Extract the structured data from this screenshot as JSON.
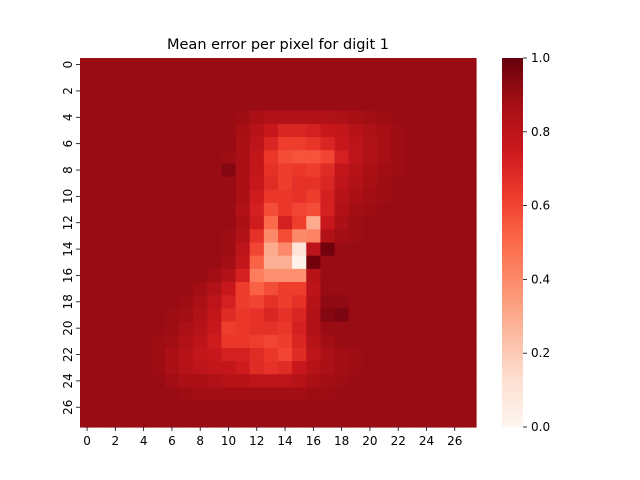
{
  "chart_data": {
    "type": "heatmap",
    "title": "Mean error per pixel for digit 1",
    "xlabel": "",
    "ylabel": "",
    "rows": 28,
    "cols": 28,
    "x_ticks": [
      "0",
      "2",
      "4",
      "6",
      "8",
      "10",
      "12",
      "14",
      "16",
      "18",
      "20",
      "22",
      "24",
      "26"
    ],
    "y_ticks": [
      "0",
      "2",
      "4",
      "6",
      "8",
      "10",
      "12",
      "14",
      "16",
      "18",
      "20",
      "22",
      "24",
      "26"
    ],
    "colorbar": {
      "colormap": "Reds",
      "vmin": 0.0,
      "vmax": 1.0,
      "ticks": [
        "0.0",
        "0.2",
        "0.4",
        "0.6",
        "0.8",
        "1.0"
      ]
    },
    "grid": false,
    "background_value": 0.9,
    "values": [
      [
        0.9,
        0.9,
        0.9,
        0.9,
        0.9,
        0.9,
        0.9,
        0.9,
        0.9,
        0.9,
        0.9,
        0.9,
        0.9,
        0.9,
        0.9,
        0.9,
        0.9,
        0.9,
        0.9,
        0.9,
        0.9,
        0.9,
        0.9,
        0.9,
        0.9,
        0.9,
        0.9,
        0.9
      ],
      [
        0.9,
        0.9,
        0.9,
        0.9,
        0.9,
        0.9,
        0.9,
        0.9,
        0.9,
        0.9,
        0.9,
        0.9,
        0.9,
        0.9,
        0.9,
        0.9,
        0.9,
        0.9,
        0.9,
        0.9,
        0.9,
        0.9,
        0.9,
        0.9,
        0.9,
        0.9,
        0.9,
        0.9
      ],
      [
        0.9,
        0.9,
        0.9,
        0.9,
        0.9,
        0.9,
        0.9,
        0.9,
        0.9,
        0.9,
        0.9,
        0.9,
        0.9,
        0.9,
        0.9,
        0.9,
        0.9,
        0.9,
        0.9,
        0.9,
        0.9,
        0.9,
        0.9,
        0.9,
        0.9,
        0.9,
        0.9,
        0.9
      ],
      [
        0.9,
        0.9,
        0.9,
        0.9,
        0.9,
        0.9,
        0.9,
        0.9,
        0.9,
        0.9,
        0.9,
        0.9,
        0.9,
        0.9,
        0.9,
        0.9,
        0.9,
        0.9,
        0.9,
        0.9,
        0.9,
        0.9,
        0.9,
        0.9,
        0.9,
        0.9,
        0.9,
        0.9
      ],
      [
        0.9,
        0.9,
        0.9,
        0.9,
        0.9,
        0.9,
        0.9,
        0.9,
        0.9,
        0.9,
        0.9,
        0.89,
        0.86,
        0.84,
        0.84,
        0.84,
        0.84,
        0.84,
        0.85,
        0.87,
        0.88,
        0.89,
        0.9,
        0.9,
        0.9,
        0.9,
        0.9,
        0.9
      ],
      [
        0.9,
        0.9,
        0.9,
        0.9,
        0.9,
        0.9,
        0.9,
        0.9,
        0.9,
        0.9,
        0.9,
        0.87,
        0.82,
        0.76,
        0.7,
        0.7,
        0.72,
        0.76,
        0.78,
        0.82,
        0.85,
        0.87,
        0.89,
        0.9,
        0.9,
        0.9,
        0.9,
        0.9
      ],
      [
        0.9,
        0.9,
        0.9,
        0.9,
        0.9,
        0.9,
        0.9,
        0.9,
        0.9,
        0.9,
        0.9,
        0.86,
        0.8,
        0.7,
        0.62,
        0.62,
        0.65,
        0.7,
        0.76,
        0.8,
        0.84,
        0.87,
        0.89,
        0.9,
        0.9,
        0.9,
        0.9,
        0.9
      ],
      [
        0.9,
        0.9,
        0.9,
        0.9,
        0.9,
        0.9,
        0.9,
        0.9,
        0.9,
        0.9,
        0.89,
        0.86,
        0.78,
        0.64,
        0.58,
        0.56,
        0.56,
        0.6,
        0.72,
        0.8,
        0.84,
        0.87,
        0.89,
        0.9,
        0.9,
        0.9,
        0.9,
        0.9
      ],
      [
        0.9,
        0.9,
        0.9,
        0.9,
        0.9,
        0.9,
        0.9,
        0.9,
        0.9,
        0.9,
        0.94,
        0.86,
        0.78,
        0.66,
        0.62,
        0.64,
        0.62,
        0.68,
        0.78,
        0.82,
        0.86,
        0.88,
        0.89,
        0.9,
        0.9,
        0.9,
        0.9,
        0.9
      ],
      [
        0.9,
        0.9,
        0.9,
        0.9,
        0.9,
        0.9,
        0.9,
        0.9,
        0.9,
        0.9,
        0.9,
        0.86,
        0.76,
        0.68,
        0.62,
        0.66,
        0.66,
        0.7,
        0.8,
        0.84,
        0.87,
        0.89,
        0.9,
        0.9,
        0.9,
        0.9,
        0.9,
        0.9
      ],
      [
        0.9,
        0.9,
        0.9,
        0.9,
        0.9,
        0.9,
        0.9,
        0.9,
        0.9,
        0.9,
        0.9,
        0.86,
        0.74,
        0.64,
        0.64,
        0.66,
        0.62,
        0.72,
        0.82,
        0.86,
        0.88,
        0.89,
        0.9,
        0.9,
        0.9,
        0.9,
        0.9,
        0.9
      ],
      [
        0.9,
        0.9,
        0.9,
        0.9,
        0.9,
        0.9,
        0.9,
        0.9,
        0.9,
        0.9,
        0.9,
        0.84,
        0.72,
        0.58,
        0.64,
        0.6,
        0.58,
        0.72,
        0.84,
        0.88,
        0.89,
        0.9,
        0.9,
        0.9,
        0.9,
        0.9,
        0.9,
        0.9
      ],
      [
        0.9,
        0.9,
        0.9,
        0.9,
        0.9,
        0.9,
        0.9,
        0.9,
        0.9,
        0.9,
        0.9,
        0.86,
        0.74,
        0.5,
        0.72,
        0.62,
        0.3,
        0.76,
        0.86,
        0.89,
        0.9,
        0.9,
        0.9,
        0.9,
        0.9,
        0.9,
        0.9,
        0.9
      ],
      [
        0.9,
        0.9,
        0.9,
        0.9,
        0.9,
        0.9,
        0.9,
        0.9,
        0.9,
        0.9,
        0.89,
        0.84,
        0.66,
        0.4,
        0.58,
        0.4,
        0.42,
        0.84,
        0.88,
        0.89,
        0.9,
        0.9,
        0.9,
        0.9,
        0.9,
        0.9,
        0.9,
        0.9
      ],
      [
        0.9,
        0.9,
        0.9,
        0.9,
        0.9,
        0.9,
        0.9,
        0.9,
        0.9,
        0.9,
        0.89,
        0.8,
        0.6,
        0.3,
        0.4,
        0.1,
        0.8,
        0.98,
        0.9,
        0.9,
        0.9,
        0.9,
        0.9,
        0.9,
        0.9,
        0.9,
        0.9,
        0.9
      ],
      [
        0.9,
        0.9,
        0.9,
        0.9,
        0.9,
        0.9,
        0.9,
        0.9,
        0.9,
        0.9,
        0.88,
        0.78,
        0.52,
        0.28,
        0.28,
        0.02,
        0.98,
        0.9,
        0.9,
        0.9,
        0.9,
        0.9,
        0.9,
        0.9,
        0.9,
        0.9,
        0.9,
        0.9
      ],
      [
        0.9,
        0.9,
        0.9,
        0.9,
        0.9,
        0.9,
        0.9,
        0.9,
        0.9,
        0.88,
        0.84,
        0.72,
        0.44,
        0.38,
        0.38,
        0.38,
        0.82,
        0.9,
        0.9,
        0.9,
        0.9,
        0.9,
        0.9,
        0.9,
        0.9,
        0.9,
        0.9,
        0.9
      ],
      [
        0.9,
        0.9,
        0.9,
        0.9,
        0.9,
        0.9,
        0.9,
        0.9,
        0.88,
        0.84,
        0.76,
        0.62,
        0.52,
        0.58,
        0.62,
        0.62,
        0.8,
        0.9,
        0.9,
        0.9,
        0.9,
        0.9,
        0.9,
        0.9,
        0.9,
        0.9,
        0.9,
        0.9
      ],
      [
        0.9,
        0.9,
        0.9,
        0.9,
        0.9,
        0.9,
        0.9,
        0.89,
        0.86,
        0.8,
        0.72,
        0.62,
        0.6,
        0.66,
        0.62,
        0.66,
        0.82,
        0.92,
        0.92,
        0.9,
        0.9,
        0.9,
        0.9,
        0.9,
        0.9,
        0.9,
        0.9,
        0.9
      ],
      [
        0.9,
        0.9,
        0.9,
        0.9,
        0.9,
        0.9,
        0.89,
        0.88,
        0.84,
        0.78,
        0.68,
        0.64,
        0.66,
        0.7,
        0.66,
        0.7,
        0.84,
        0.94,
        0.96,
        0.9,
        0.9,
        0.9,
        0.9,
        0.9,
        0.9,
        0.9,
        0.9,
        0.9
      ],
      [
        0.9,
        0.9,
        0.9,
        0.9,
        0.9,
        0.9,
        0.89,
        0.86,
        0.82,
        0.76,
        0.62,
        0.64,
        0.66,
        0.66,
        0.64,
        0.72,
        0.84,
        0.9,
        0.9,
        0.9,
        0.9,
        0.9,
        0.9,
        0.9,
        0.9,
        0.9,
        0.9,
        0.9
      ],
      [
        0.9,
        0.9,
        0.9,
        0.9,
        0.9,
        0.89,
        0.88,
        0.84,
        0.8,
        0.74,
        0.64,
        0.64,
        0.62,
        0.6,
        0.62,
        0.7,
        0.82,
        0.88,
        0.9,
        0.9,
        0.9,
        0.9,
        0.9,
        0.9,
        0.9,
        0.9,
        0.9,
        0.9
      ],
      [
        0.9,
        0.9,
        0.9,
        0.9,
        0.9,
        0.89,
        0.86,
        0.82,
        0.78,
        0.76,
        0.72,
        0.72,
        0.68,
        0.64,
        0.6,
        0.68,
        0.8,
        0.86,
        0.88,
        0.89,
        0.9,
        0.9,
        0.9,
        0.9,
        0.9,
        0.9,
        0.9,
        0.9
      ],
      [
        0.9,
        0.9,
        0.9,
        0.9,
        0.9,
        0.89,
        0.86,
        0.82,
        0.8,
        0.78,
        0.78,
        0.74,
        0.68,
        0.66,
        0.68,
        0.76,
        0.82,
        0.86,
        0.88,
        0.89,
        0.9,
        0.9,
        0.9,
        0.9,
        0.9,
        0.9,
        0.9,
        0.9
      ],
      [
        0.9,
        0.9,
        0.9,
        0.9,
        0.9,
        0.9,
        0.88,
        0.86,
        0.86,
        0.84,
        0.82,
        0.82,
        0.8,
        0.8,
        0.8,
        0.82,
        0.86,
        0.88,
        0.89,
        0.9,
        0.9,
        0.9,
        0.9,
        0.9,
        0.9,
        0.9,
        0.9,
        0.9
      ],
      [
        0.9,
        0.9,
        0.9,
        0.9,
        0.9,
        0.9,
        0.9,
        0.89,
        0.88,
        0.88,
        0.88,
        0.88,
        0.88,
        0.88,
        0.88,
        0.88,
        0.89,
        0.89,
        0.9,
        0.9,
        0.9,
        0.9,
        0.9,
        0.9,
        0.9,
        0.9,
        0.9,
        0.9
      ],
      [
        0.9,
        0.9,
        0.9,
        0.9,
        0.9,
        0.9,
        0.9,
        0.9,
        0.9,
        0.9,
        0.9,
        0.9,
        0.9,
        0.9,
        0.9,
        0.9,
        0.9,
        0.9,
        0.9,
        0.9,
        0.9,
        0.9,
        0.9,
        0.9,
        0.9,
        0.9,
        0.9,
        0.9
      ],
      [
        0.9,
        0.9,
        0.9,
        0.9,
        0.9,
        0.9,
        0.9,
        0.9,
        0.9,
        0.9,
        0.9,
        0.9,
        0.9,
        0.9,
        0.9,
        0.9,
        0.9,
        0.9,
        0.9,
        0.9,
        0.9,
        0.9,
        0.9,
        0.9,
        0.9,
        0.9,
        0.9,
        0.9
      ]
    ]
  }
}
